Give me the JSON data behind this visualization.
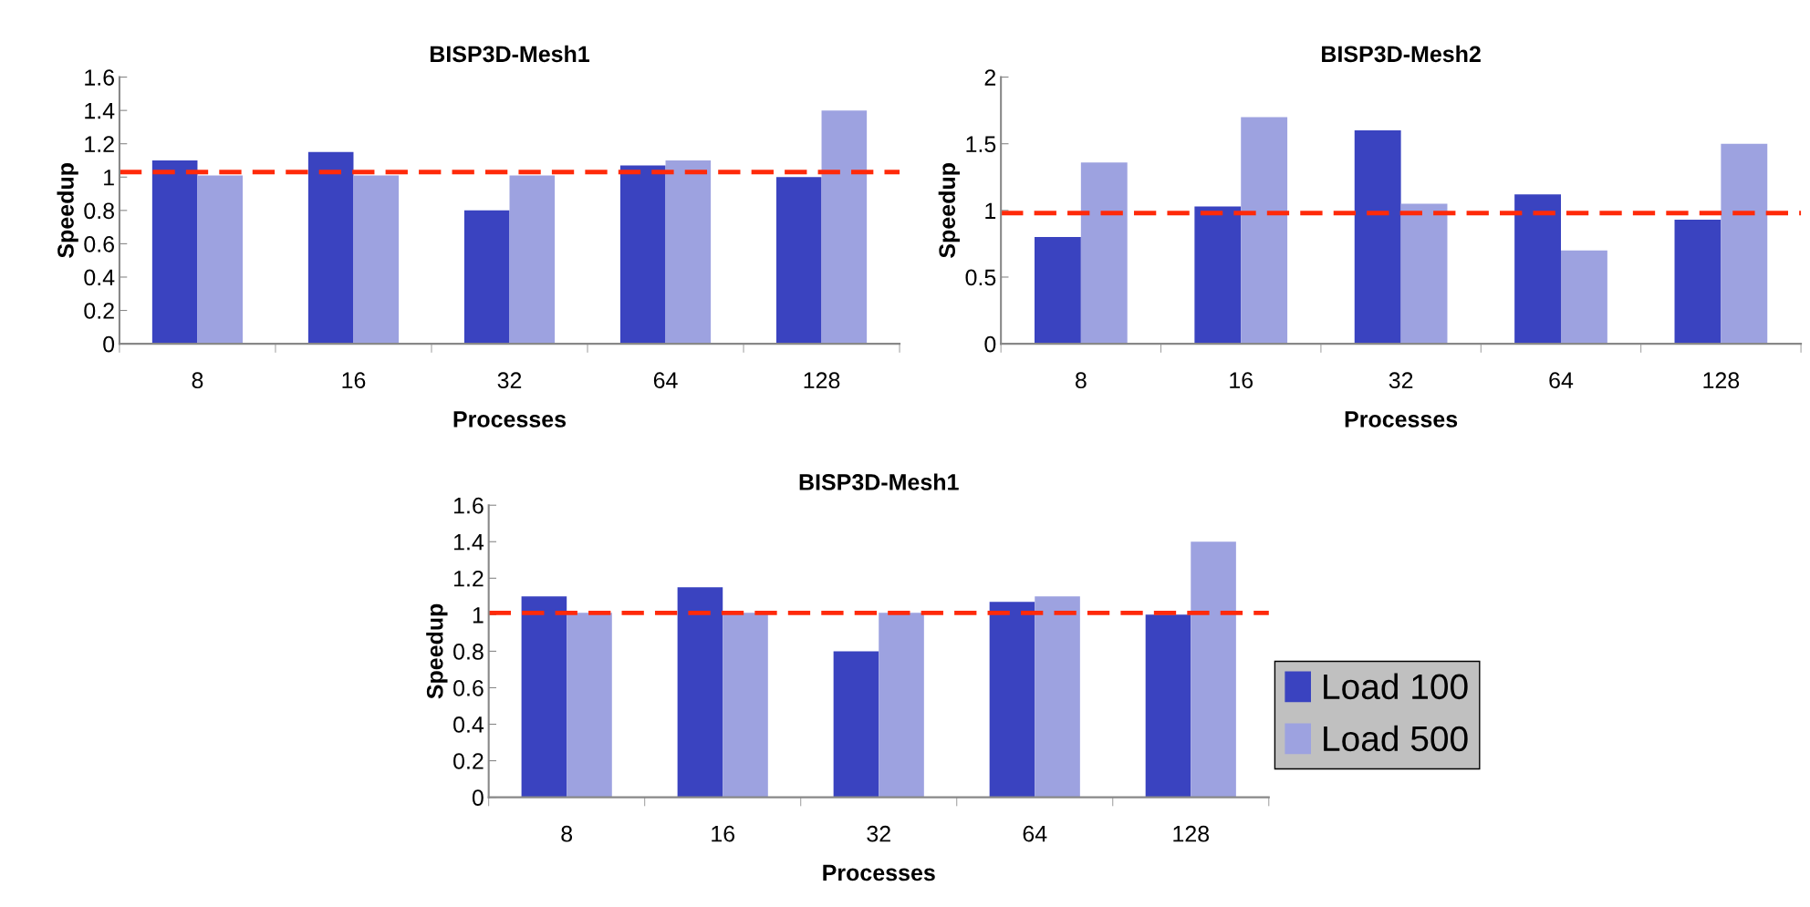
{
  "chart_data": [
    {
      "type": "bar",
      "title": "BISP3D-Mesh1",
      "xlabel": "Processes",
      "ylabel": "Speedup",
      "categories": [
        "8",
        "16",
        "32",
        "64",
        "128"
      ],
      "series": [
        {
          "color": "#3a43c0",
          "values": [
            1.1,
            1.15,
            0.8,
            1.07,
            1.0
          ]
        },
        {
          "color": "#9da2e0",
          "values": [
            1.01,
            1.01,
            1.01,
            1.1,
            1.4
          ]
        }
      ],
      "ylim": [
        0,
        1.6
      ],
      "yticks": [
        0,
        0.2,
        0.4,
        0.6,
        0.8,
        1,
        1.2,
        1.4,
        1.6
      ],
      "grid": false,
      "legend": false,
      "ref_lines": [
        {
          "axis": "y",
          "value": 1.03,
          "color": "#ff2a0a",
          "line_style": "dashed"
        }
      ]
    },
    {
      "type": "bar",
      "title": "BISP3D-Mesh2",
      "xlabel": "Processes",
      "ylabel": "Speedup",
      "categories": [
        "8",
        "16",
        "32",
        "64",
        "128"
      ],
      "series": [
        {
          "color": "#3a43c0",
          "values": [
            0.8,
            1.03,
            1.6,
            1.12,
            0.93
          ]
        },
        {
          "color": "#9da2e0",
          "values": [
            1.36,
            1.7,
            1.05,
            0.7,
            1.5
          ]
        }
      ],
      "ylim": [
        0,
        2
      ],
      "yticks": [
        0,
        0.5,
        1,
        1.5,
        2
      ],
      "grid": false,
      "legend": false,
      "ref_lines": [
        {
          "axis": "y",
          "value": 0.98,
          "color": "#ff2a0a",
          "line_style": "dashed"
        }
      ]
    },
    {
      "type": "bar",
      "title": "BISP3D-Mesh1",
      "xlabel": "Processes",
      "ylabel": "Speedup",
      "categories": [
        "8",
        "16",
        "32",
        "64",
        "128"
      ],
      "series": [
        {
          "name": "Load 100",
          "color": "#3a43c0",
          "values": [
            1.1,
            1.15,
            0.8,
            1.07,
            1.0
          ]
        },
        {
          "name": "Load 500",
          "color": "#9da2e0",
          "values": [
            1.01,
            1.01,
            1.01,
            1.1,
            1.4
          ]
        }
      ],
      "ylim": [
        0,
        1.6
      ],
      "yticks": [
        0,
        0.2,
        0.4,
        0.6,
        0.8,
        1,
        1.2,
        1.4,
        1.6
      ],
      "grid": false,
      "legend": "right",
      "ref_lines": [
        {
          "axis": "y",
          "value": 1.01,
          "color": "#ff2a0a",
          "line_style": "dashed"
        }
      ]
    }
  ]
}
